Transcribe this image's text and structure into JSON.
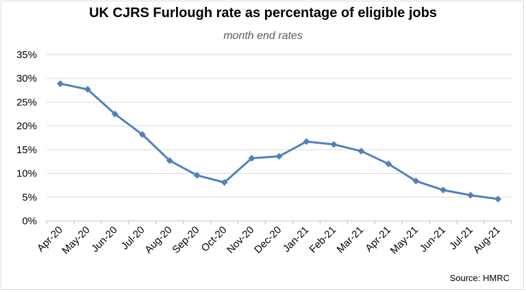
{
  "chart_data": {
    "type": "line",
    "title": "UK CJRS Furlough rate as percentage of eligible jobs",
    "subtitle": "month end rates",
    "source": "Source: HMRC",
    "categories": [
      "Apr-20",
      "May-20",
      "Jun-20",
      "Jul-20",
      "Aug-20",
      "Sep-20",
      "Oct-20",
      "Nov-20",
      "Dec-20",
      "Jan-21",
      "Feb-21",
      "Mar-21",
      "Apr-21",
      "May-21",
      "Jun-21",
      "Jul-21",
      "Aug-21"
    ],
    "values": [
      28.9,
      27.7,
      22.5,
      18.2,
      12.7,
      9.6,
      8.1,
      13.2,
      13.6,
      16.7,
      16.1,
      14.7,
      12.0,
      8.4,
      6.5,
      5.4,
      4.6
    ],
    "yticks": [
      "0%",
      "5%",
      "10%",
      "15%",
      "20%",
      "25%",
      "30%",
      "35%"
    ],
    "ylim": [
      0,
      35
    ],
    "grid": true,
    "line_color": "#4f81bd",
    "marker": "diamond"
  }
}
